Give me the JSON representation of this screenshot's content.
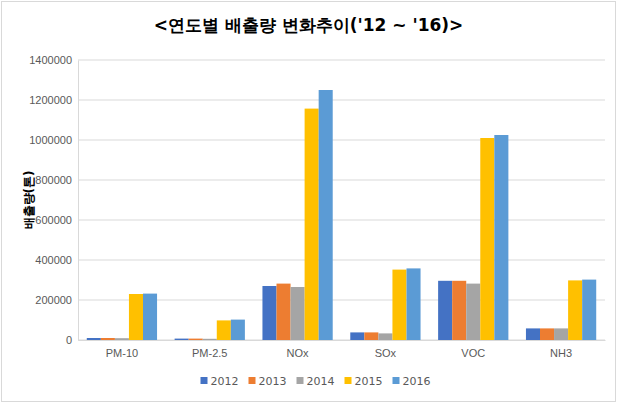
{
  "chart_data": {
    "type": "bar",
    "title": "<연도별 배출량 변화추이('12 ~ '16)>",
    "y_label": "배출량(톤)",
    "categories": [
      "PM-10",
      "PM-2.5",
      "NOx",
      "SOx",
      "VOC",
      "NH3"
    ],
    "series": [
      {
        "name": "2012",
        "color": "#4472c4",
        "values": [
          10000,
          7000,
          270000,
          38000,
          296000,
          58000
        ]
      },
      {
        "name": "2013",
        "color": "#ed7d31",
        "values": [
          10000,
          7000,
          282000,
          38000,
          296000,
          58000
        ]
      },
      {
        "name": "2014",
        "color": "#a5a5a5",
        "values": [
          9000,
          6000,
          265000,
          33000,
          282000,
          58000
        ]
      },
      {
        "name": "2015",
        "color": "#ffc000",
        "values": [
          230000,
          98000,
          1157000,
          352000,
          1010000,
          298000
        ]
      },
      {
        "name": "2016",
        "color": "#5b9bd5",
        "values": [
          232000,
          102000,
          1250000,
          358000,
          1025000,
          302000
        ]
      }
    ],
    "ylim": [
      0,
      1400000
    ],
    "yticks": [
      0,
      200000,
      400000,
      600000,
      800000,
      1000000,
      1200000,
      1400000
    ],
    "grid": true,
    "legend": "bottom"
  }
}
